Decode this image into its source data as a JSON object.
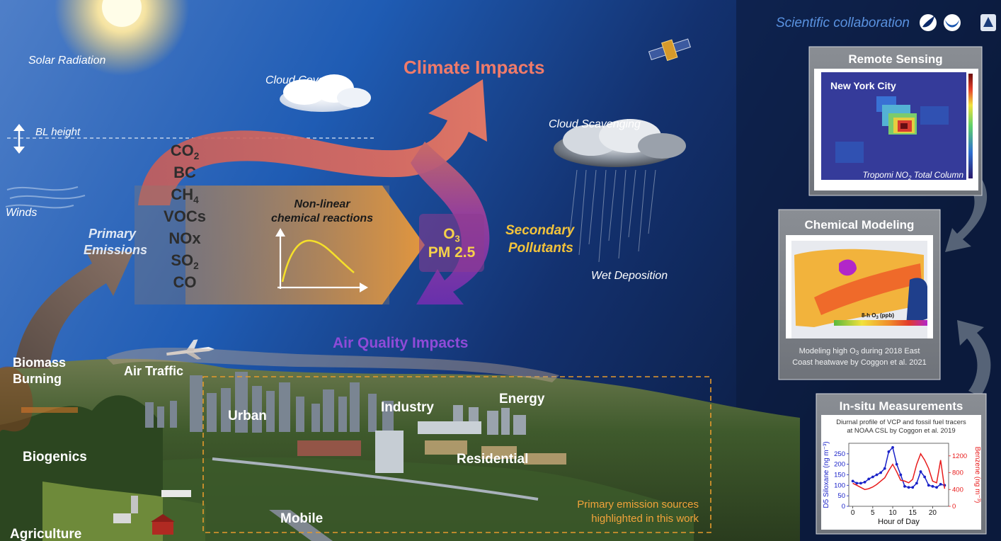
{
  "header": {
    "collaboration": "Scientific collaboration"
  },
  "atmosphere": {
    "solar_radiation": "Solar Radiation",
    "cloud_cover": "Cloud Cover",
    "bl_height": "BL height",
    "winds": "Winds",
    "cloud_scavenging": "Cloud Scavenging",
    "wet_deposition": "Wet Deposition"
  },
  "flow": {
    "climate_impacts": "Climate Impacts",
    "air_quality_impacts": "Air Quality Impacts",
    "primary_emissions_line1": "Primary",
    "primary_emissions_line2": "Emissions",
    "reactions_line1": "Non-linear",
    "reactions_line2": "chemical reactions",
    "secondary_line1": "Secondary",
    "secondary_line2": "Pollutants",
    "secondary_species": [
      {
        "base": "O",
        "sub": "3"
      },
      {
        "base": "PM 2.5",
        "sub": ""
      }
    ],
    "primary_species": [
      {
        "base": "CO",
        "sub": "2"
      },
      {
        "base": "BC",
        "sub": ""
      },
      {
        "base": "CH",
        "sub": "4"
      },
      {
        "base": "VOCs",
        "sub": ""
      },
      {
        "base": "NOx",
        "sub": ""
      },
      {
        "base": "SO",
        "sub": "2"
      },
      {
        "base": "CO",
        "sub": ""
      }
    ]
  },
  "sources": {
    "biomass_line1": "Biomass",
    "biomass_line2": "Burning",
    "air_traffic": "Air Traffic",
    "urban": "Urban",
    "industry": "Industry",
    "energy": "Energy",
    "residential": "Residential",
    "biogenics": "Biogenics",
    "mobile": "Mobile",
    "agriculture": "Agriculture",
    "highlight_line1": "Primary emission sources",
    "highlight_line2": "highlighted in this work"
  },
  "panels": {
    "remote_sensing": {
      "title": "Remote Sensing",
      "city": "New York City",
      "product": "Tropomi NO",
      "product_sub": "2",
      "product_tail": " Total Column"
    },
    "chemical_modeling": {
      "title": "Chemical Modeling",
      "legend_label": "8-h O",
      "legend_sub": "3",
      "legend_unit": " (ppb)",
      "caption_line1": "Modeling high O",
      "caption_sub": "3",
      "caption_tail": " during 2018 East",
      "caption_line2": "Coast heatwave by Coggon et al. 2021"
    },
    "insitu": {
      "title": "In-situ Measurements",
      "caption_line1": "Diurnal profile of VCP and fossil fuel tracers",
      "caption_line2": "at NOAA CSL by Coggon et al. 2019"
    }
  },
  "chart_data": {
    "type": "line",
    "xlabel": "Hour of Day",
    "ylabel_left": "D5 Siloxane (ng m⁻³)",
    "ylabel_right": "Benzene (ng m⁻³)",
    "xlim": [
      -1,
      24
    ],
    "ylim_left": [
      0,
      300
    ],
    "ylim_right": [
      0,
      1500
    ],
    "x_ticks": [
      0,
      5,
      10,
      15,
      20
    ],
    "y_ticks_left": [
      0,
      50,
      100,
      150,
      200,
      250
    ],
    "y_ticks_right": [
      0,
      400,
      800,
      1200
    ],
    "colors": {
      "left": "#1a22c8",
      "right": "#e81c1c"
    },
    "x": [
      0,
      1,
      2,
      3,
      4,
      5,
      6,
      7,
      8,
      9,
      10,
      11,
      12,
      13,
      14,
      15,
      16,
      17,
      18,
      19,
      20,
      21,
      22,
      23
    ],
    "series": [
      {
        "axis": "left",
        "values": [
          120,
          110,
          110,
          115,
          130,
          140,
          150,
          160,
          180,
          260,
          280,
          200,
          150,
          95,
          90,
          90,
          110,
          165,
          140,
          100,
          95,
          90,
          105,
          100
        ]
      },
      {
        "axis": "right",
        "values": [
          550,
          500,
          450,
          400,
          420,
          460,
          520,
          600,
          680,
          850,
          1000,
          820,
          620,
          600,
          560,
          640,
          1000,
          1250,
          1100,
          900,
          600,
          560,
          1100,
          420
        ]
      }
    ]
  }
}
